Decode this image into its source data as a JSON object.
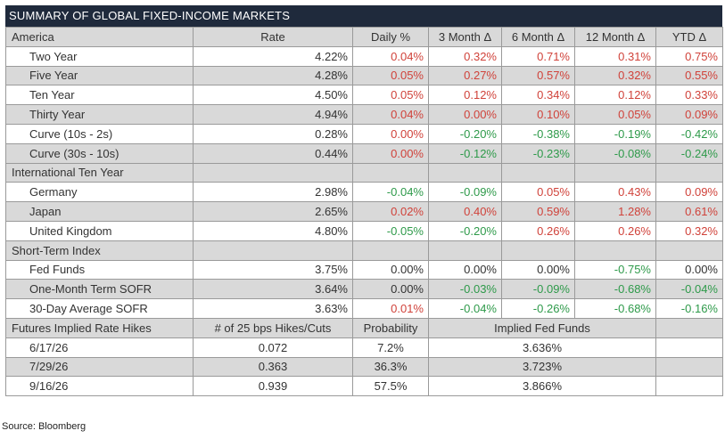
{
  "title": "SUMMARY OF GLOBAL FIXED-INCOME MARKETS",
  "header": {
    "label": "America",
    "cols": [
      "Rate",
      "Daily %",
      "3 Month Δ",
      "6 Month Δ",
      "12 Month Δ",
      "YTD Δ"
    ]
  },
  "america": [
    {
      "label": "Two Year",
      "rate": "4.22%",
      "daily": "0.04%",
      "m3": "0.32%",
      "m6": "0.71%",
      "m12": "0.31%",
      "ytd": "0.75%"
    },
    {
      "label": "Five Year",
      "rate": "4.28%",
      "daily": "0.05%",
      "m3": "0.27%",
      "m6": "0.57%",
      "m12": "0.32%",
      "ytd": "0.55%"
    },
    {
      "label": "Ten Year",
      "rate": "4.50%",
      "daily": "0.05%",
      "m3": "0.12%",
      "m6": "0.34%",
      "m12": "0.12%",
      "ytd": "0.33%"
    },
    {
      "label": "Thirty Year",
      "rate": "4.94%",
      "daily": "0.04%",
      "m3": "0.00%",
      "m6": "0.10%",
      "m12": "0.05%",
      "ytd": "0.09%"
    },
    {
      "label": "Curve (10s - 2s)",
      "rate": "0.28%",
      "daily": "0.00%",
      "m3": "-0.20%",
      "m6": "-0.38%",
      "m12": "-0.19%",
      "ytd": "-0.42%"
    },
    {
      "label": "Curve (30s - 10s)",
      "rate": "0.44%",
      "daily": "0.00%",
      "m3": "-0.12%",
      "m6": "-0.23%",
      "m12": "-0.08%",
      "ytd": "-0.24%"
    }
  ],
  "international_label": "International Ten Year",
  "international": [
    {
      "label": "Germany",
      "rate": "2.98%",
      "daily": "-0.04%",
      "m3": "-0.09%",
      "m6": "0.05%",
      "m12": "0.43%",
      "ytd": "0.09%"
    },
    {
      "label": "Japan",
      "rate": "2.65%",
      "daily": "0.02%",
      "m3": "0.40%",
      "m6": "0.59%",
      "m12": "1.28%",
      "ytd": "0.61%"
    },
    {
      "label": "United Kingdom",
      "rate": "4.80%",
      "daily": "-0.05%",
      "m3": "-0.20%",
      "m6": "0.26%",
      "m12": "0.26%",
      "ytd": "0.32%"
    }
  ],
  "short_term_label": "Short-Term Index",
  "short_term": [
    {
      "label": "Fed Funds",
      "rate": "3.75%",
      "daily": "0.00%",
      "m3": "0.00%",
      "m6": "0.00%",
      "m12": "-0.75%",
      "ytd": "0.00%"
    },
    {
      "label": "One-Month Term SOFR",
      "rate": "3.64%",
      "daily": "0.00%",
      "m3": "-0.03%",
      "m6": "-0.09%",
      "m12": "-0.68%",
      "ytd": "-0.04%"
    },
    {
      "label": "30-Day Average SOFR",
      "rate": "3.63%",
      "daily": "0.01%",
      "m3": "-0.04%",
      "m6": "-0.26%",
      "m12": "-0.68%",
      "ytd": "-0.16%"
    }
  ],
  "futures_header": {
    "label": "Futures Implied Rate Hikes",
    "hikes": "# of 25 bps Hikes/Cuts",
    "prob": "Probability",
    "implied": "Implied Fed Funds"
  },
  "futures": [
    {
      "date": "6/17/26",
      "hikes": "0.072",
      "prob": "7.2%",
      "implied": "3.636%"
    },
    {
      "date": "7/29/26",
      "hikes": "0.363",
      "prob": "36.3%",
      "implied": "3.723%"
    },
    {
      "date": "9/16/26",
      "hikes": "0.939",
      "prob": "57.5%",
      "implied": "3.866%"
    }
  ],
  "source": "Source: Bloomberg",
  "colors": {
    "title_bg": "#1f2a3c",
    "shade": "#d9d9d9",
    "positive": "#d0423a",
    "negative": "#2e9a4a"
  }
}
